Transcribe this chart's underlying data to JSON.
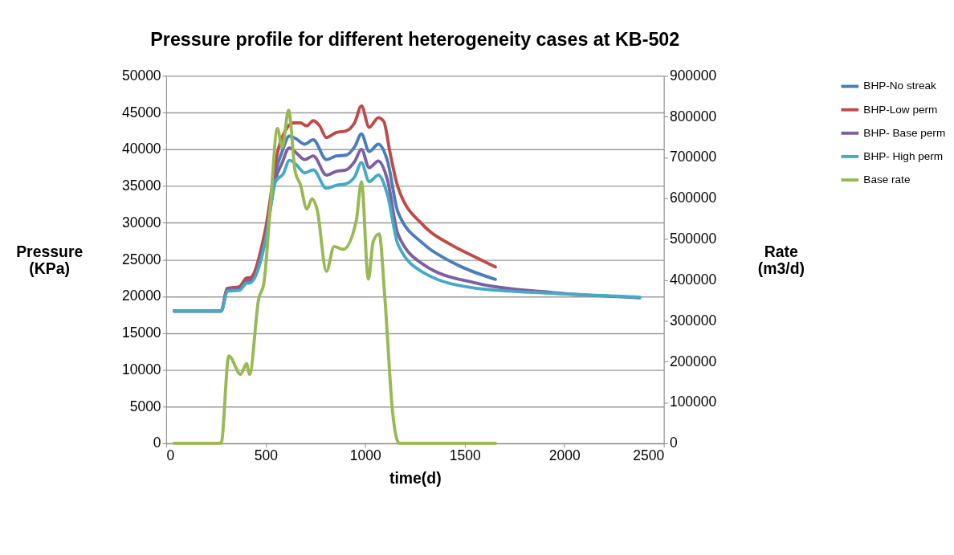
{
  "chart_data": {
    "type": "line",
    "title": "Pressure profile for different heterogeneity cases at KB-502",
    "xlabel": "time(d)",
    "ylabel": "Pressure (KPa)",
    "y2label": "Rate (m3/d)",
    "xlim": [
      0,
      2500
    ],
    "xticks": [
      0,
      500,
      1000,
      1500,
      2000,
      2500
    ],
    "ylim": [
      0,
      50000
    ],
    "yticks": [
      0,
      5000,
      10000,
      15000,
      20000,
      25000,
      30000,
      35000,
      40000,
      45000,
      50000
    ],
    "y2lim": [
      0,
      900000
    ],
    "y2ticks": [
      0,
      100000,
      200000,
      300000,
      400000,
      500000,
      600000,
      700000,
      800000,
      900000
    ],
    "grid": "y",
    "legend": "right",
    "marker": "none",
    "line_style": "solid",
    "series": [
      {
        "name": "BHP-No streak",
        "color": "#4a7ebb",
        "x": [
          40,
          276,
          308,
          367,
          406,
          419,
          498,
          550,
          580,
          619,
          654,
          696,
          739,
          805,
          855,
          903,
          948,
          981,
          1020,
          1066,
          1112,
          1164,
          1294,
          1425,
          1654
        ],
        "values": [
          18000,
          18000,
          21000,
          21200,
          22200,
          22200,
          28300,
          37000,
          39500,
          41800,
          41400,
          40700,
          41300,
          38600,
          39100,
          39200,
          40400,
          42100,
          39700,
          40700,
          38400,
          31500,
          27100,
          24800,
          22300
        ]
      },
      {
        "name": "BHP-Low perm",
        "color": "#be4b48",
        "x": [
          40,
          276,
          308,
          367,
          406,
          419,
          498,
          563,
          602,
          641,
          674,
          706,
          739,
          771,
          805,
          855,
          903,
          948,
          981,
          1020,
          1066,
          1093,
          1125,
          1164,
          1294,
          1425,
          1556,
          1654
        ],
        "values": [
          18000,
          18000,
          21100,
          21300,
          22500,
          22500,
          29000,
          40000,
          42700,
          43600,
          43600,
          43200,
          43900,
          43200,
          41600,
          42300,
          42500,
          43700,
          45900,
          43000,
          44300,
          43800,
          39500,
          34900,
          29600,
          27100,
          25300,
          24000
        ]
      },
      {
        "name": "BHP- Base perm",
        "color": "#7d60a0",
        "x": [
          40,
          276,
          308,
          367,
          406,
          419,
          498,
          550,
          580,
          619,
          654,
          696,
          739,
          805,
          855,
          903,
          948,
          981,
          1020,
          1066,
          1112,
          1164,
          1294,
          1556,
          1948,
          2379
        ],
        "values": [
          18000,
          18000,
          20900,
          21000,
          22000,
          22000,
          27800,
          36000,
          38000,
          40200,
          39500,
          38600,
          39100,
          36500,
          37000,
          37200,
          38400,
          40000,
          37500,
          38400,
          35800,
          28500,
          24300,
          21800,
          20500,
          19800
        ]
      },
      {
        "name": "BHP- High perm",
        "color": "#46aac5",
        "x": [
          40,
          276,
          308,
          367,
          406,
          419,
          498,
          550,
          589,
          619,
          654,
          696,
          739,
          805,
          855,
          903,
          948,
          981,
          1020,
          1066,
          1112,
          1164,
          1294,
          1556,
          1948,
          2379
        ],
        "values": [
          18000,
          18000,
          20700,
          20800,
          21800,
          21800,
          27400,
          35600,
          36700,
          38500,
          37900,
          36800,
          37200,
          34700,
          35100,
          35300,
          36300,
          38200,
          35600,
          36500,
          33800,
          27100,
          23200,
          21100,
          20400,
          19900
        ]
      },
      {
        "name": "Base rate",
        "color": "#98b954",
        "axis": "y2",
        "x": [
          40,
          276,
          315,
          374,
          404,
          419,
          465,
          491,
          524,
          559,
          583,
          615,
          648,
          674,
          707,
          733,
          759,
          805,
          844,
          890,
          955,
          981,
          1016,
          1040,
          1070,
          1098,
          1138,
          1170,
          1654
        ],
        "values": [
          0,
          0,
          214000,
          169000,
          195000,
          169000,
          354000,
          392000,
          583000,
          771000,
          724000,
          816000,
          666000,
          634000,
          574000,
          599000,
          571000,
          421000,
          482000,
          475000,
          545000,
          641000,
          402000,
          494000,
          513000,
          361000,
          74000,
          0,
          0
        ]
      }
    ]
  }
}
